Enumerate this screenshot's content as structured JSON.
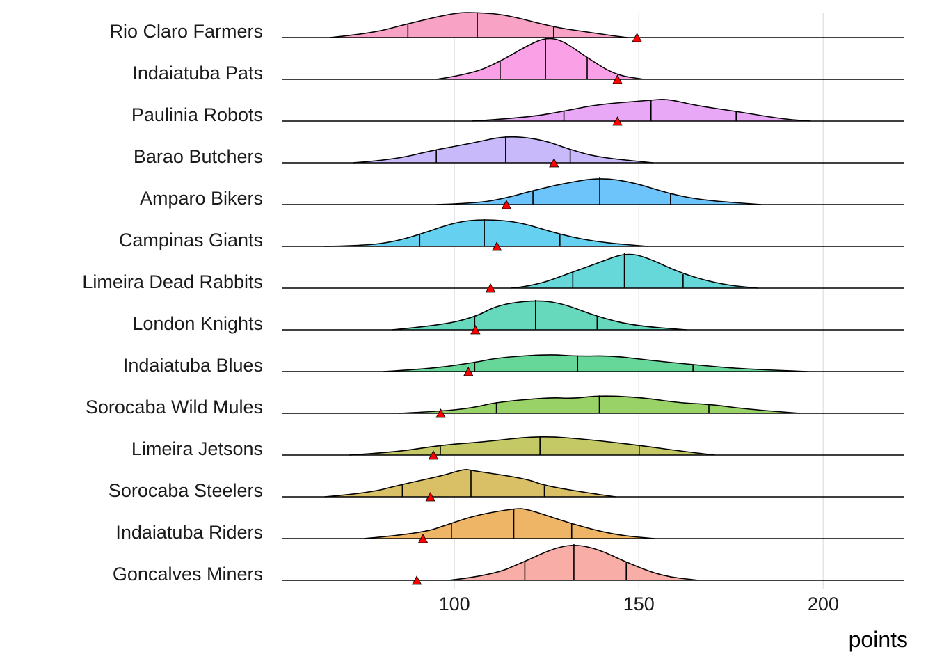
{
  "chart_data": {
    "type": "ridgeline",
    "xlabel": "points",
    "xlim": [
      53.2,
      222
    ],
    "x_ticks": [
      100,
      150,
      200
    ],
    "x_tick_labels": [
      "100",
      "150",
      "200"
    ],
    "grid": "vertical major",
    "marker_color": "#FF0000",
    "series": [
      {
        "name": "Rio Claro Farmers",
        "color": "#F8A2C6",
        "quantiles": [
          87.4,
          106.2,
          126.9
        ],
        "marker": 149.5,
        "density": [
          [
            66.2,
            0
          ],
          [
            77.3,
            5.7
          ],
          [
            87.4,
            20
          ],
          [
            100.4,
            36
          ],
          [
            106.2,
            36
          ],
          [
            113.9,
            33
          ],
          [
            126.9,
            15
          ],
          [
            136,
            8
          ],
          [
            145.1,
            1
          ],
          [
            147,
            0
          ]
        ]
      },
      {
        "name": "Indaiatuba Pats",
        "color": "#F9A0E6",
        "quantiles": [
          112.4,
          124.7,
          136
        ],
        "marker": 144.2,
        "density": [
          [
            95.1,
            0
          ],
          [
            104.7,
            7.7
          ],
          [
            112.4,
            25.7
          ],
          [
            119.6,
            48
          ],
          [
            124.7,
            60
          ],
          [
            129.3,
            56
          ],
          [
            136,
            31
          ],
          [
            143.7,
            6
          ],
          [
            151.4,
            0
          ]
        ]
      },
      {
        "name": "Paulinia Robots",
        "color": "#E8A8F6",
        "quantiles": [
          129.7,
          153.3,
          176.4
        ],
        "marker": 144.2,
        "density": [
          [
            104.7,
            0
          ],
          [
            119.6,
            5
          ],
          [
            129.7,
            14.3
          ],
          [
            138.9,
            24
          ],
          [
            153.3,
            30
          ],
          [
            157.6,
            32
          ],
          [
            165.8,
            22
          ],
          [
            176.4,
            14
          ],
          [
            188.9,
            3
          ],
          [
            196.6,
            0
          ]
        ]
      },
      {
        "name": "Barao Butchers",
        "color": "#C8B9FA",
        "quantiles": [
          95.1,
          113.9,
          131.4
        ],
        "marker": 127,
        "density": [
          [
            72.5,
            0
          ],
          [
            83.1,
            4
          ],
          [
            95.1,
            19
          ],
          [
            104.7,
            28
          ],
          [
            113.9,
            39
          ],
          [
            123.5,
            34
          ],
          [
            131.4,
            19
          ],
          [
            138.9,
            8
          ],
          [
            153.8,
            0
          ]
        ]
      },
      {
        "name": "Amparo Bikers",
        "color": "#6CC4FA",
        "quantiles": [
          121.3,
          139.4,
          158.6
        ],
        "marker": 114.1,
        "density": [
          [
            95.1,
            0
          ],
          [
            106.2,
            2
          ],
          [
            113.9,
            9.3
          ],
          [
            121.3,
            20
          ],
          [
            129.3,
            30
          ],
          [
            139.4,
            39
          ],
          [
            148.5,
            32
          ],
          [
            158.6,
            15
          ],
          [
            167.8,
            6
          ],
          [
            183.2,
            0
          ]
        ]
      },
      {
        "name": "Campinas Giants",
        "color": "#66D0F0",
        "quantiles": [
          90.6,
          108.1,
          128.6
        ],
        "marker": 111.5,
        "density": [
          [
            64.8,
            0
          ],
          [
            74.9,
            1
          ],
          [
            83.1,
            6
          ],
          [
            90.6,
            17
          ],
          [
            100.4,
            35
          ],
          [
            108.1,
            39
          ],
          [
            117.7,
            35
          ],
          [
            128.6,
            17
          ],
          [
            138.9,
            6
          ],
          [
            152.4,
            0
          ]
        ]
      },
      {
        "name": "Limeira Dead Rabbits",
        "color": "#66D8DA",
        "quantiles": [
          132.1,
          146.1,
          162
        ],
        "marker": 109.8,
        "density": [
          [
            115.3,
            0
          ],
          [
            121.6,
            3
          ],
          [
            132.1,
            23
          ],
          [
            139.8,
            38
          ],
          [
            146.1,
            50
          ],
          [
            151.4,
            46
          ],
          [
            162,
            20
          ],
          [
            172.6,
            5
          ],
          [
            182.2,
            0
          ]
        ]
      },
      {
        "name": "London Knights",
        "color": "#66D9BD",
        "quantiles": [
          105.5,
          122,
          138.7
        ],
        "marker": 105.7,
        "density": [
          [
            83.1,
            0
          ],
          [
            95.6,
            6
          ],
          [
            105.5,
            18
          ],
          [
            111.9,
            36
          ],
          [
            122,
            43
          ],
          [
            129.3,
            38
          ],
          [
            138.7,
            19
          ],
          [
            148.5,
            6
          ],
          [
            162.9,
            0
          ]
        ]
      },
      {
        "name": "Indaiatuba Blues",
        "color": "#66D699",
        "quantiles": [
          105.5,
          133.4,
          164.7
        ],
        "marker": 103.8,
        "density": [
          [
            80.7,
            0
          ],
          [
            92.7,
            3.5
          ],
          [
            105.5,
            13
          ],
          [
            111.9,
            20
          ],
          [
            125.4,
            25
          ],
          [
            133.4,
            22
          ],
          [
            142.3,
            23
          ],
          [
            153.3,
            16
          ],
          [
            164.7,
            10
          ],
          [
            177.4,
            4
          ],
          [
            195.7,
            0
          ]
        ]
      },
      {
        "name": "Sorocaba Wild Mules",
        "color": "#99D266",
        "quantiles": [
          111.4,
          139.3,
          169
        ],
        "marker": 96.3,
        "density": [
          [
            85,
            0
          ],
          [
            96.5,
            3
          ],
          [
            105.2,
            8
          ],
          [
            111.4,
            16
          ],
          [
            126.4,
            23
          ],
          [
            131.7,
            21
          ],
          [
            139.3,
            25.7
          ],
          [
            150.4,
            23
          ],
          [
            161,
            15
          ],
          [
            169,
            13
          ],
          [
            179.3,
            6
          ],
          [
            193.7,
            0
          ]
        ]
      },
      {
        "name": "Limeira Jetsons",
        "color": "#C4C966",
        "quantiles": [
          96.2,
          123.2,
          150.1
        ],
        "marker": 94.3,
        "density": [
          [
            71.5,
            0
          ],
          [
            84,
            4
          ],
          [
            96.2,
            14.3
          ],
          [
            108.1,
            19
          ],
          [
            123.2,
            28
          ],
          [
            137,
            22
          ],
          [
            150.1,
            14
          ],
          [
            161,
            6
          ],
          [
            170.6,
            0
          ]
        ]
      },
      {
        "name": "Sorocaba Steelers",
        "color": "#D9C066",
        "quantiles": [
          85.9,
          104.5,
          124.4
        ],
        "marker": 93.5,
        "density": [
          [
            64.8,
            0
          ],
          [
            76.3,
            5
          ],
          [
            85.9,
            18
          ],
          [
            96.5,
            30
          ],
          [
            102.8,
            40
          ],
          [
            104.5,
            38
          ],
          [
            119.6,
            26
          ],
          [
            124.4,
            16
          ],
          [
            137,
            5
          ],
          [
            143.7,
            0
          ]
        ]
      },
      {
        "name": "Indaiatuba Riders",
        "color": "#EEB566",
        "quantiles": [
          99.2,
          116.1,
          131.8
        ],
        "marker": 91.5,
        "density": [
          [
            75.4,
            0
          ],
          [
            90.8,
            7
          ],
          [
            99.2,
            22
          ],
          [
            106.2,
            34
          ],
          [
            116.1,
            43
          ],
          [
            119.6,
            43
          ],
          [
            131.8,
            21
          ],
          [
            143.7,
            5
          ],
          [
            154.3,
            0
          ]
        ]
      },
      {
        "name": "Goncalves Miners",
        "color": "#F9ADA7",
        "quantiles": [
          119.1,
          132.4,
          146.6
        ],
        "marker": 89.8,
        "density": [
          [
            98.5,
            0
          ],
          [
            110,
            7
          ],
          [
            119.1,
            27
          ],
          [
            126.4,
            45
          ],
          [
            132.4,
            52
          ],
          [
            138.9,
            45
          ],
          [
            146.6,
            26
          ],
          [
            156.2,
            6
          ],
          [
            166.3,
            0
          ]
        ]
      }
    ]
  }
}
